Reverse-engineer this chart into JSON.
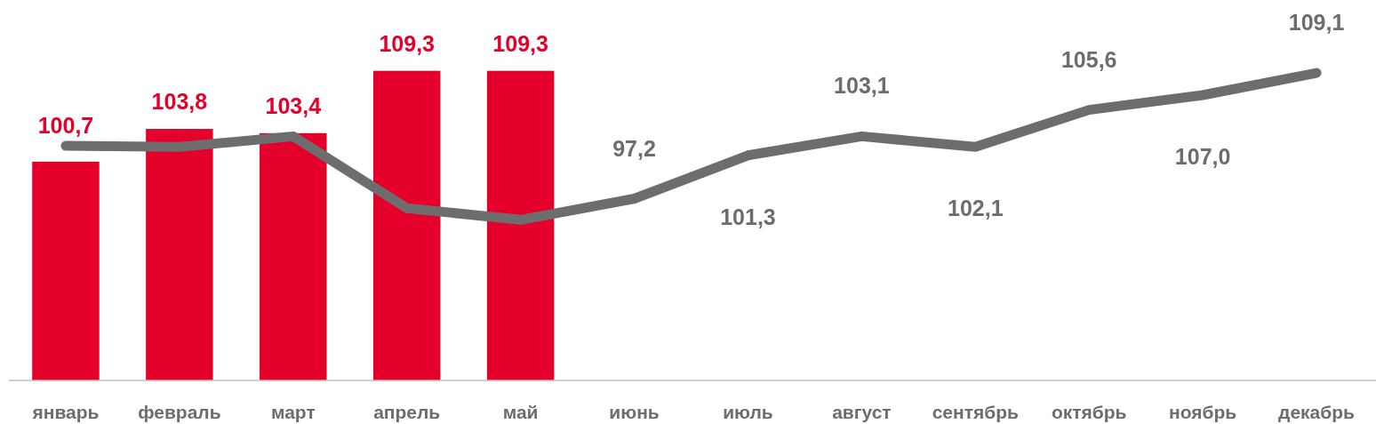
{
  "chart_data": {
    "type": "bar",
    "categories": [
      "январь",
      "февраль",
      "март",
      "апрель",
      "май",
      "июнь",
      "июль",
      "август",
      "сентябрь",
      "октябрь",
      "ноябрь",
      "декабрь"
    ],
    "ylim": [
      80,
      116
    ],
    "tick_labels": "x",
    "series": [
      {
        "color": "#e4002b",
        "values": [
          100.7,
          103.8,
          103.4,
          109.3,
          109.3,
          null,
          null,
          null,
          null,
          null,
          null,
          null
        ],
        "value_labels": [
          "100,7",
          "103,8",
          "103,4",
          "109,3",
          "109,3",
          null,
          null,
          null,
          null,
          null,
          null,
          null
        ]
      },
      {
        "type": "line",
        "color": "#6d6d6d",
        "values": [
          102.2,
          102.1,
          103.1,
          96.3,
          95.2,
          97.2,
          101.3,
          103.1,
          102.1,
          105.6,
          107.0,
          109.1
        ],
        "value_labels": [
          null,
          null,
          null,
          null,
          null,
          "97,2",
          "101,3",
          "103,1",
          "102,1",
          "105,6",
          "107,0",
          "109,1"
        ]
      }
    ],
    "marker": "none",
    "line_style": "solid"
  }
}
